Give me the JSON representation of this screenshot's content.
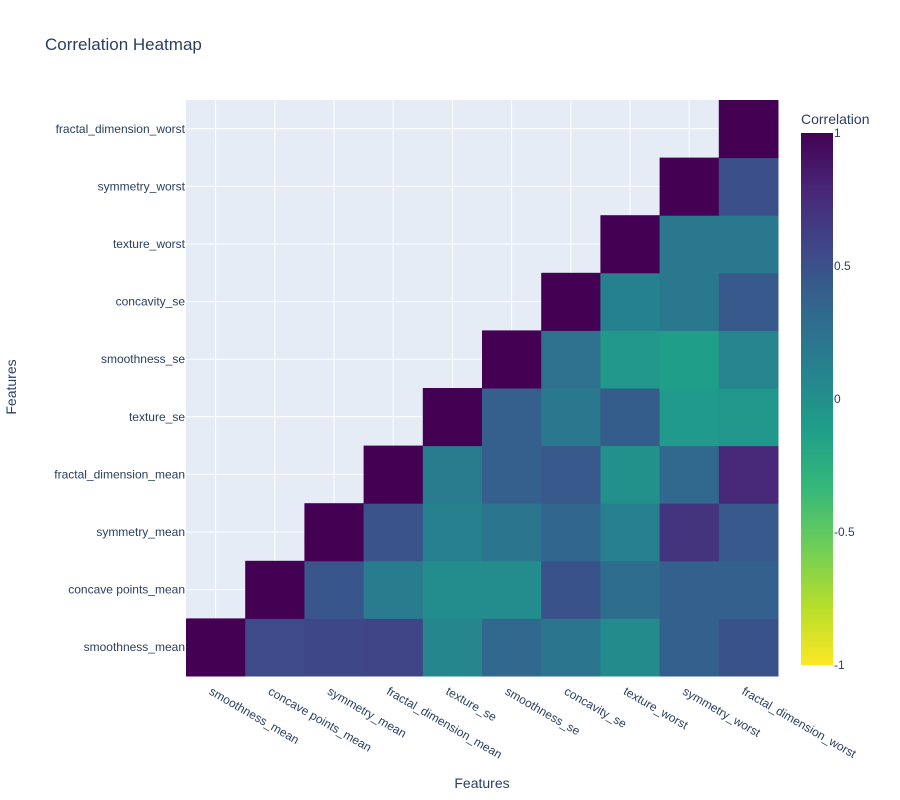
{
  "chart_data": {
    "type": "heatmap",
    "title": "Correlation Heatmap",
    "xlabel": "Features",
    "ylabel": "Features",
    "x": [
      "smoothness_mean",
      "concave points_mean",
      "symmetry_mean",
      "fractal_dimension_mean",
      "texture_se",
      "smoothness_se",
      "concavity_se",
      "texture_worst",
      "symmetry_worst",
      "fractal_dimension_worst"
    ],
    "y": [
      "smoothness_mean",
      "concave points_mean",
      "symmetry_mean",
      "fractal_dimension_mean",
      "texture_se",
      "smoothness_se",
      "concavity_se",
      "texture_worst",
      "symmetry_worst",
      "fractal_dimension_worst"
    ],
    "z": [
      [
        1,
        0.55,
        0.56,
        0.58,
        0.07,
        0.33,
        0.22,
        0.04,
        0.39,
        0.49
      ],
      [
        null,
        1,
        0.46,
        0.17,
        0.03,
        0.03,
        0.49,
        0.29,
        0.39,
        0.39
      ],
      [
        null,
        null,
        1,
        0.48,
        0.13,
        0.22,
        0.34,
        0.13,
        0.7,
        0.44
      ],
      [
        null,
        null,
        null,
        1,
        0.16,
        0.4,
        0.44,
        -0.01,
        0.33,
        0.77
      ],
      [
        null,
        null,
        null,
        null,
        1,
        0.4,
        0.2,
        0.41,
        -0.08,
        -0.05
      ],
      [
        null,
        null,
        null,
        null,
        null,
        1,
        0.26,
        -0.07,
        -0.11,
        0.1
      ],
      [
        null,
        null,
        null,
        null,
        null,
        null,
        1,
        0.12,
        0.2,
        0.44
      ],
      [
        null,
        null,
        null,
        null,
        null,
        null,
        null,
        1,
        0.2,
        0.2
      ],
      [
        null,
        null,
        null,
        null,
        null,
        null,
        null,
        null,
        1,
        0.51
      ],
      [
        null,
        null,
        null,
        null,
        null,
        null,
        null,
        null,
        null,
        1
      ]
    ],
    "zmin": -1,
    "zmax": 1,
    "colorscale": "Viridis (reversed)",
    "colorbar": {
      "title": "Correlation",
      "ticks": [
        1,
        0.5,
        0,
        -0.5,
        -1
      ],
      "tick_labels": [
        "1",
        "0.5",
        "0",
        "-0.5",
        "-1"
      ]
    },
    "grid": true,
    "plot_bgcolor": "#e5ecf6"
  }
}
